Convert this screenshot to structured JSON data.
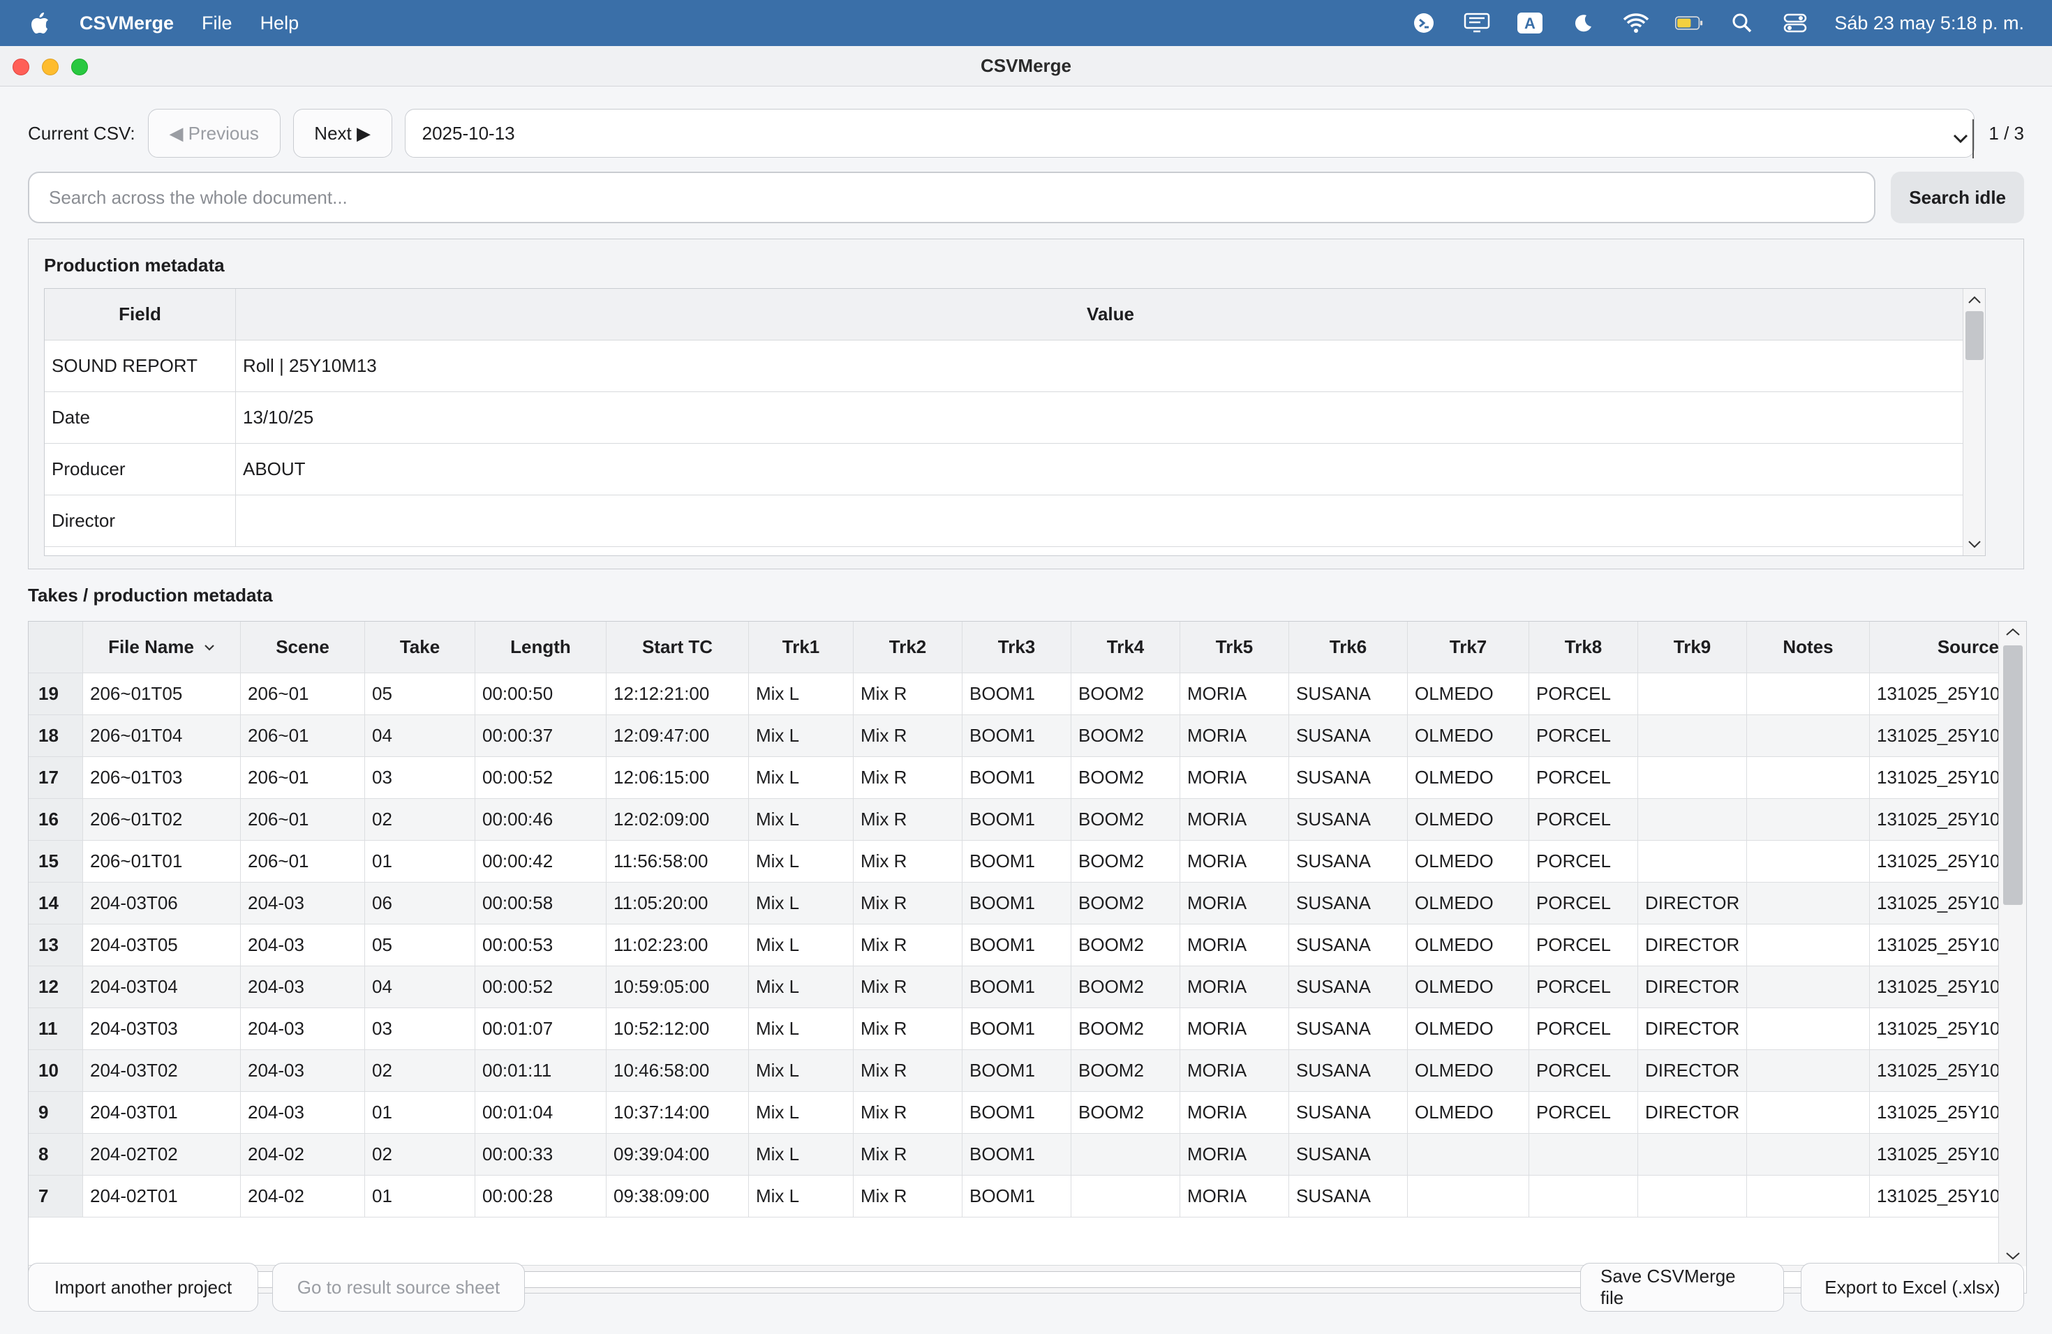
{
  "menubar": {
    "app_name": "CSVMerge",
    "menus": [
      "File",
      "Help"
    ],
    "status_icons": [
      "terminal-icon",
      "display-icon",
      "input-source-icon",
      "moon-icon",
      "wifi-icon",
      "battery-icon",
      "search-icon",
      "control-center-icon"
    ],
    "input_source_label": "A",
    "clock": "Sáb 23 may  5:18 p. m."
  },
  "window": {
    "title": "CSVMerge"
  },
  "nav": {
    "current_label": "Current CSV:",
    "previous_label": "◀ Previous",
    "next_label": "Next ▶",
    "selected_csv": "2025-10-13",
    "counter": "1 / 3"
  },
  "search": {
    "placeholder": "Search across the whole document...",
    "status_button": "Search idle"
  },
  "metadata": {
    "title": "Production metadata",
    "headers": {
      "field": "Field",
      "value": "Value"
    },
    "rows": [
      {
        "field": "SOUND REPORT",
        "value": "Roll | 25Y10M13"
      },
      {
        "field": "Date",
        "value": "13/10/25"
      },
      {
        "field": "Producer",
        "value": "ABOUT"
      },
      {
        "field": "Director",
        "value": ""
      }
    ]
  },
  "takes": {
    "title": "Takes / production metadata",
    "headers": [
      "File Name",
      "Scene",
      "Take",
      "Length",
      "Start TC",
      "Trk1",
      "Trk2",
      "Trk3",
      "Trk4",
      "Trk5",
      "Trk6",
      "Trk7",
      "Trk8",
      "Trk9",
      "Notes",
      "Source"
    ],
    "rows": [
      {
        "n": "19",
        "file": "206~01T05",
        "scene": "206~01",
        "take": "05",
        "len": "00:00:50",
        "tc": "12:12:21:00",
        "t1": "Mix L",
        "t2": "Mix R",
        "t3": "BOOM1",
        "t4": "BOOM2",
        "t5": "MORIA",
        "t6": "SUSANA",
        "t7": "OLMEDO",
        "t8": "PORCEL",
        "t9": "",
        "notes": "",
        "src": "131025_25Y10"
      },
      {
        "n": "18",
        "file": "206~01T04",
        "scene": "206~01",
        "take": "04",
        "len": "00:00:37",
        "tc": "12:09:47:00",
        "t1": "Mix L",
        "t2": "Mix R",
        "t3": "BOOM1",
        "t4": "BOOM2",
        "t5": "MORIA",
        "t6": "SUSANA",
        "t7": "OLMEDO",
        "t8": "PORCEL",
        "t9": "",
        "notes": "",
        "src": "131025_25Y10"
      },
      {
        "n": "17",
        "file": "206~01T03",
        "scene": "206~01",
        "take": "03",
        "len": "00:00:52",
        "tc": "12:06:15:00",
        "t1": "Mix L",
        "t2": "Mix R",
        "t3": "BOOM1",
        "t4": "BOOM2",
        "t5": "MORIA",
        "t6": "SUSANA",
        "t7": "OLMEDO",
        "t8": "PORCEL",
        "t9": "",
        "notes": "",
        "src": "131025_25Y10"
      },
      {
        "n": "16",
        "file": "206~01T02",
        "scene": "206~01",
        "take": "02",
        "len": "00:00:46",
        "tc": "12:02:09:00",
        "t1": "Mix L",
        "t2": "Mix R",
        "t3": "BOOM1",
        "t4": "BOOM2",
        "t5": "MORIA",
        "t6": "SUSANA",
        "t7": "OLMEDO",
        "t8": "PORCEL",
        "t9": "",
        "notes": "",
        "src": "131025_25Y10"
      },
      {
        "n": "15",
        "file": "206~01T01",
        "scene": "206~01",
        "take": "01",
        "len": "00:00:42",
        "tc": "11:56:58:00",
        "t1": "Mix L",
        "t2": "Mix R",
        "t3": "BOOM1",
        "t4": "BOOM2",
        "t5": "MORIA",
        "t6": "SUSANA",
        "t7": "OLMEDO",
        "t8": "PORCEL",
        "t9": "",
        "notes": "",
        "src": "131025_25Y10"
      },
      {
        "n": "14",
        "file": "204-03T06",
        "scene": "204-03",
        "take": "06",
        "len": "00:00:58",
        "tc": "11:05:20:00",
        "t1": "Mix L",
        "t2": "Mix R",
        "t3": "BOOM1",
        "t4": "BOOM2",
        "t5": "MORIA",
        "t6": "SUSANA",
        "t7": "OLMEDO",
        "t8": "PORCEL",
        "t9": "DIRECTOR",
        "notes": "",
        "src": "131025_25Y10"
      },
      {
        "n": "13",
        "file": "204-03T05",
        "scene": "204-03",
        "take": "05",
        "len": "00:00:53",
        "tc": "11:02:23:00",
        "t1": "Mix L",
        "t2": "Mix R",
        "t3": "BOOM1",
        "t4": "BOOM2",
        "t5": "MORIA",
        "t6": "SUSANA",
        "t7": "OLMEDO",
        "t8": "PORCEL",
        "t9": "DIRECTOR",
        "notes": "",
        "src": "131025_25Y10"
      },
      {
        "n": "12",
        "file": "204-03T04",
        "scene": "204-03",
        "take": "04",
        "len": "00:00:52",
        "tc": "10:59:05:00",
        "t1": "Mix L",
        "t2": "Mix R",
        "t3": "BOOM1",
        "t4": "BOOM2",
        "t5": "MORIA",
        "t6": "SUSANA",
        "t7": "OLMEDO",
        "t8": "PORCEL",
        "t9": "DIRECTOR",
        "notes": "",
        "src": "131025_25Y10"
      },
      {
        "n": "11",
        "file": "204-03T03",
        "scene": "204-03",
        "take": "03",
        "len": "00:01:07",
        "tc": "10:52:12:00",
        "t1": "Mix L",
        "t2": "Mix R",
        "t3": "BOOM1",
        "t4": "BOOM2",
        "t5": "MORIA",
        "t6": "SUSANA",
        "t7": "OLMEDO",
        "t8": "PORCEL",
        "t9": "DIRECTOR",
        "notes": "",
        "src": "131025_25Y10"
      },
      {
        "n": "10",
        "file": "204-03T02",
        "scene": "204-03",
        "take": "02",
        "len": "00:01:11",
        "tc": "10:46:58:00",
        "t1": "Mix L",
        "t2": "Mix R",
        "t3": "BOOM1",
        "t4": "BOOM2",
        "t5": "MORIA",
        "t6": "SUSANA",
        "t7": "OLMEDO",
        "t8": "PORCEL",
        "t9": "DIRECTOR",
        "notes": "",
        "src": "131025_25Y10"
      },
      {
        "n": "9",
        "file": "204-03T01",
        "scene": "204-03",
        "take": "01",
        "len": "00:01:04",
        "tc": "10:37:14:00",
        "t1": "Mix L",
        "t2": "Mix R",
        "t3": "BOOM1",
        "t4": "BOOM2",
        "t5": "MORIA",
        "t6": "SUSANA",
        "t7": "OLMEDO",
        "t8": "PORCEL",
        "t9": "DIRECTOR",
        "notes": "",
        "src": "131025_25Y10"
      },
      {
        "n": "8",
        "file": "204-02T02",
        "scene": "204-02",
        "take": "02",
        "len": "00:00:33",
        "tc": "09:39:04:00",
        "t1": "Mix L",
        "t2": "Mix R",
        "t3": "BOOM1",
        "t4": "",
        "t5": "MORIA",
        "t6": "SUSANA",
        "t7": "",
        "t8": "",
        "t9": "",
        "notes": "",
        "src": "131025_25Y10"
      },
      {
        "n": "7",
        "file": "204-02T01",
        "scene": "204-02",
        "take": "01",
        "len": "00:00:28",
        "tc": "09:38:09:00",
        "t1": "Mix L",
        "t2": "Mix R",
        "t3": "BOOM1",
        "t4": "",
        "t5": "MORIA",
        "t6": "SUSANA",
        "t7": "",
        "t8": "",
        "t9": "",
        "notes": "",
        "src": "131025_25Y10"
      }
    ]
  },
  "footer": {
    "import_label": "Import another project",
    "goto_label": "Go to result source sheet",
    "save_label": "Save CSVMerge file",
    "export_label": "Export to Excel (.xlsx)"
  }
}
